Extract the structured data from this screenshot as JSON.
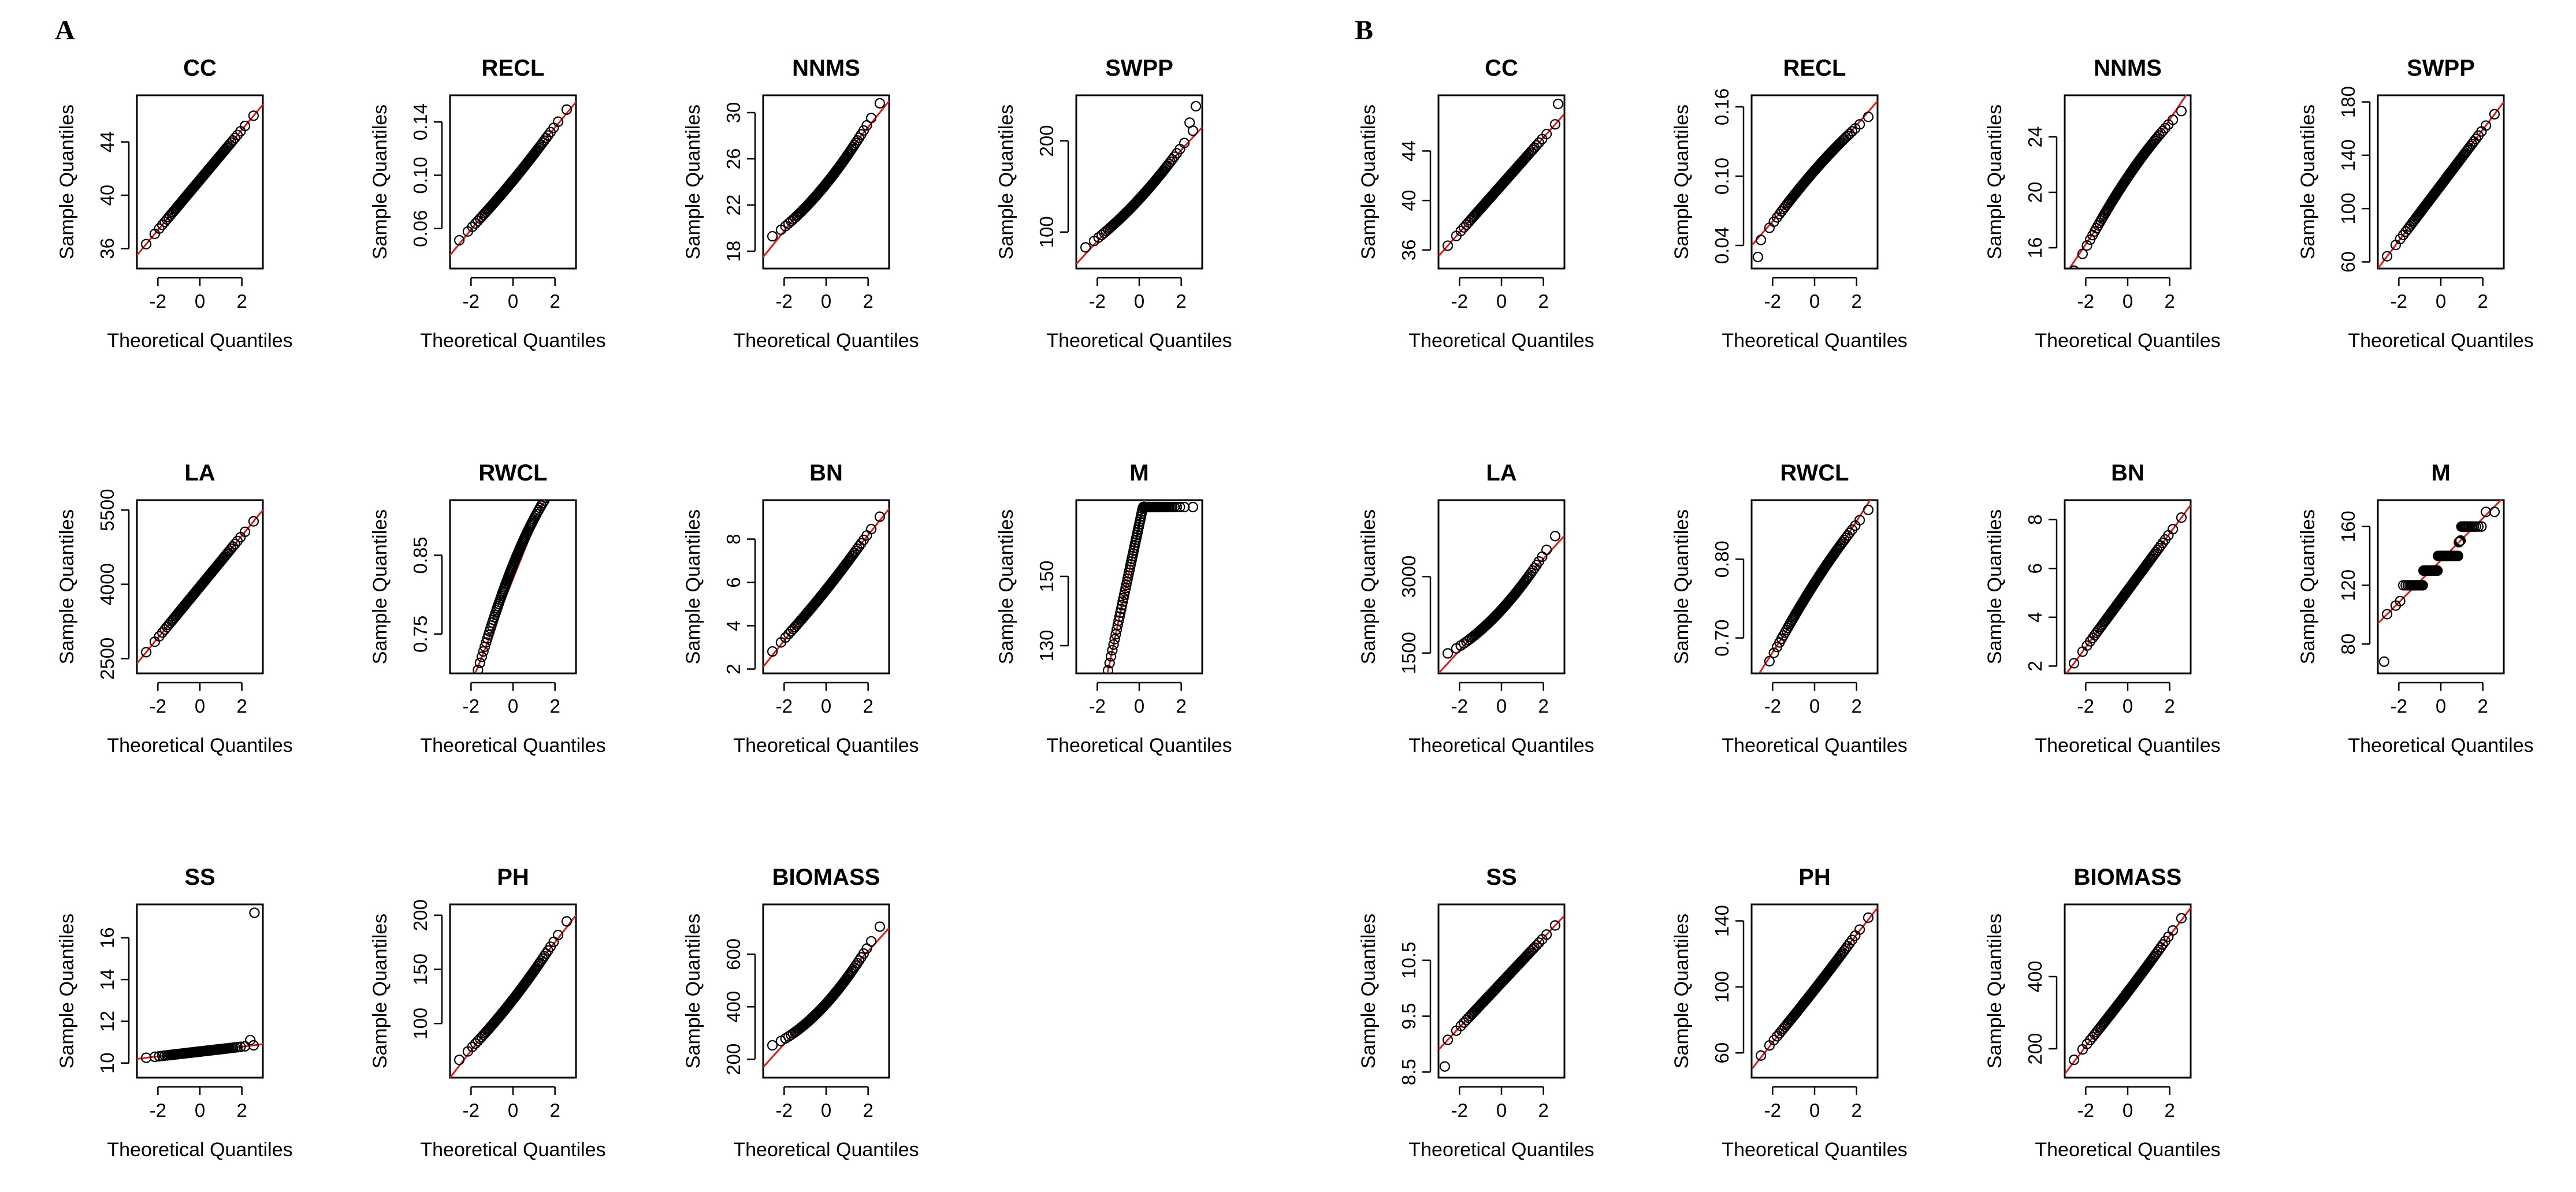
{
  "figure": {
    "panels": [
      {
        "letter": "A"
      },
      {
        "letter": "B"
      }
    ]
  },
  "chart_data": [
    {
      "panel": "A",
      "type": "scatter",
      "title": "CC",
      "xlabel": "Theoretical Quantiles",
      "ylabel": "Sample Quantiles",
      "xlim": [
        -3,
        3
      ],
      "xticks": [
        -2,
        0,
        2
      ],
      "ylim": [
        34.5,
        47.5
      ],
      "yticks": [
        36,
        40,
        44
      ],
      "n": 95,
      "line_range": [
        35.5,
        46.8
      ],
      "curve": 0,
      "extra": []
    },
    {
      "panel": "A",
      "type": "scatter",
      "title": "RECL",
      "xlabel": "Theoretical Quantiles",
      "ylabel": "Sample Quantiles",
      "xlim": [
        -3,
        3
      ],
      "xticks": [
        -2,
        0,
        2
      ],
      "ylim": [
        0.03,
        0.16
      ],
      "yticks": [
        0.06,
        0.1,
        0.14
      ],
      "ytick_labels": [
        "0.06",
        "0.10",
        "0.14"
      ],
      "n": 95,
      "line_range": [
        0.04,
        0.155
      ],
      "curve": 0.1,
      "extra": []
    },
    {
      "panel": "A",
      "type": "scatter",
      "title": "NNMS",
      "xlabel": "Theoretical Quantiles",
      "ylabel": "Sample Quantiles",
      "xlim": [
        -3,
        3
      ],
      "xticks": [
        -2,
        0,
        2
      ],
      "ylim": [
        16.5,
        31.5
      ],
      "yticks": [
        18,
        22,
        26,
        30
      ],
      "n": 95,
      "line_range": [
        17.5,
        31
      ],
      "curve": 0.25,
      "extra": []
    },
    {
      "panel": "A",
      "type": "scatter",
      "title": "SWPP",
      "xlabel": "Theoretical Quantiles",
      "ylabel": "Sample Quantiles",
      "xlim": [
        -3,
        3
      ],
      "xticks": [
        -2,
        0,
        2
      ],
      "ylim": [
        60,
        250
      ],
      "yticks": [
        100,
        200
      ],
      "n": 95,
      "line_range": [
        65,
        215
      ],
      "curve": 0.2,
      "extra": [
        [
          2.4,
          220
        ],
        [
          2.7,
          238
        ]
      ]
    },
    {
      "panel": "A",
      "type": "scatter",
      "title": "LA",
      "xlabel": "Theoretical Quantiles",
      "ylabel": "Sample Quantiles",
      "xlim": [
        -3,
        3
      ],
      "xticks": [
        -2,
        0,
        2
      ],
      "ylim": [
        2200,
        5700
      ],
      "yticks": [
        2500,
        4000,
        5500
      ],
      "n": 95,
      "line_range": [
        2400,
        5500
      ],
      "curve": 0,
      "extra": []
    },
    {
      "panel": "A",
      "type": "scatter",
      "title": "RWCL",
      "xlabel": "Theoretical Quantiles",
      "ylabel": "Sample Quantiles",
      "xlim": [
        -3,
        3
      ],
      "xticks": [
        -2,
        0,
        2
      ],
      "ylim": [
        0.7,
        0.92
      ],
      "yticks": [
        0.75,
        0.85
      ],
      "n": 95,
      "line_range": [
        0.62,
        1.02
      ],
      "curve": -0.35,
      "extra": []
    },
    {
      "panel": "A",
      "type": "scatter",
      "title": "BN",
      "xlabel": "Theoretical Quantiles",
      "ylabel": "Sample Quantiles",
      "xlim": [
        -3,
        3
      ],
      "xticks": [
        -2,
        0,
        2
      ],
      "ylim": [
        1.8,
        9.8
      ],
      "yticks": [
        2,
        4,
        6,
        8
      ],
      "n": 95,
      "line_range": [
        2.1,
        9.4
      ],
      "curve": 0.1,
      "extra": []
    },
    {
      "panel": "A",
      "type": "scatter",
      "title": "M",
      "xlabel": "Theoretical Quantiles",
      "ylabel": "Sample Quantiles",
      "xlim": [
        -3,
        3
      ],
      "xticks": [
        -2,
        0,
        2
      ],
      "ylim": [
        122,
        172
      ],
      "yticks": [
        130,
        150
      ],
      "n": 95,
      "line_range": [
        80,
        250
      ],
      "curve": 0,
      "cap": 170,
      "extra": []
    },
    {
      "panel": "A",
      "type": "scatter",
      "title": "SS",
      "xlabel": "Theoretical Quantiles",
      "ylabel": "Sample Quantiles",
      "xlim": [
        -3,
        3
      ],
      "xticks": [
        -2,
        0,
        2
      ],
      "ylim": [
        9.3,
        17.6
      ],
      "yticks": [
        10,
        12,
        14,
        16
      ],
      "n": 95,
      "line_range": [
        10.2,
        10.9
      ],
      "curve": 0,
      "extra": [
        [
          2.4,
          11.1
        ],
        [
          2.6,
          17.2
        ]
      ]
    },
    {
      "panel": "A",
      "type": "scatter",
      "title": "PH",
      "xlabel": "Theoretical Quantiles",
      "ylabel": "Sample Quantiles",
      "xlim": [
        -3,
        3
      ],
      "xticks": [
        -2,
        0,
        2
      ],
      "ylim": [
        50,
        210
      ],
      "yticks": [
        100,
        150,
        200
      ],
      "n": 95,
      "line_range": [
        50,
        200
      ],
      "curve": 0.15,
      "extra": []
    },
    {
      "panel": "A",
      "type": "scatter",
      "title": "BIOMASS",
      "xlabel": "Theoretical Quantiles",
      "ylabel": "Sample Quantiles",
      "xlim": [
        -3,
        3
      ],
      "xticks": [
        -2,
        0,
        2
      ],
      "ylim": [
        130,
        790
      ],
      "yticks": [
        200,
        400,
        600
      ],
      "n": 95,
      "line_range": [
        170,
        700
      ],
      "curve": 0.35,
      "extra": []
    },
    {
      "panel": "B",
      "type": "scatter",
      "title": "CC",
      "xlabel": "Theoretical Quantiles",
      "ylabel": "Sample Quantiles",
      "xlim": [
        -3,
        3
      ],
      "xticks": [
        -2,
        0,
        2
      ],
      "ylim": [
        34.5,
        48.5
      ],
      "yticks": [
        36,
        40,
        44
      ],
      "n": 95,
      "line_range": [
        35.5,
        47
      ],
      "curve": 0,
      "extra": [
        [
          2.7,
          47.8
        ]
      ]
    },
    {
      "panel": "B",
      "type": "scatter",
      "title": "RECL",
      "xlabel": "Theoretical Quantiles",
      "ylabel": "Sample Quantiles",
      "xlim": [
        -3,
        3
      ],
      "xticks": [
        -2,
        0,
        2
      ],
      "ylim": [
        0.02,
        0.17
      ],
      "yticks": [
        0.04,
        0.1,
        0.16
      ],
      "ytick_labels": [
        "0.04",
        "0.10",
        "0.16"
      ],
      "n": 95,
      "line_range": [
        0.04,
        0.165
      ],
      "curve": -0.15,
      "extra": [
        [
          -2.7,
          0.03
        ]
      ]
    },
    {
      "panel": "B",
      "type": "scatter",
      "title": "NNMS",
      "xlabel": "Theoretical Quantiles",
      "ylabel": "Sample Quantiles",
      "xlim": [
        -3,
        3
      ],
      "xticks": [
        -2,
        0,
        2
      ],
      "ylim": [
        14.5,
        27
      ],
      "yticks": [
        16,
        20,
        24
      ],
      "n": 95,
      "line_range": [
        14,
        27.5
      ],
      "curve": -0.2,
      "extra": []
    },
    {
      "panel": "B",
      "type": "scatter",
      "title": "SWPP",
      "xlabel": "Theoretical Quantiles",
      "ylabel": "Sample Quantiles",
      "xlim": [
        -3,
        3
      ],
      "xticks": [
        -2,
        0,
        2
      ],
      "ylim": [
        55,
        185
      ],
      "yticks": [
        60,
        100,
        140,
        180
      ],
      "n": 95,
      "line_range": [
        55,
        180
      ],
      "curve": 0,
      "extra": []
    },
    {
      "panel": "B",
      "type": "scatter",
      "title": "LA",
      "xlabel": "Theoretical Quantiles",
      "ylabel": "Sample Quantiles",
      "xlim": [
        -3,
        3
      ],
      "xticks": [
        -2,
        0,
        2
      ],
      "ylim": [
        1100,
        4500
      ],
      "yticks": [
        1500,
        3000
      ],
      "n": 95,
      "line_range": [
        1100,
        3800
      ],
      "curve": 0.3,
      "extra": []
    },
    {
      "panel": "B",
      "type": "scatter",
      "title": "RWCL",
      "xlabel": "Theoretical Quantiles",
      "ylabel": "Sample Quantiles",
      "xlim": [
        -3,
        3
      ],
      "xticks": [
        -2,
        0,
        2
      ],
      "ylim": [
        0.655,
        0.875
      ],
      "yticks": [
        0.7,
        0.8
      ],
      "ytick_labels": [
        "0.70",
        "0.80"
      ],
      "n": 95,
      "line_range": [
        0.64,
        0.89
      ],
      "curve": -0.15,
      "extra": []
    },
    {
      "panel": "B",
      "type": "scatter",
      "title": "BN",
      "xlabel": "Theoretical Quantiles",
      "ylabel": "Sample Quantiles",
      "xlim": [
        -3,
        3
      ],
      "xticks": [
        -2,
        0,
        2
      ],
      "ylim": [
        1.7,
        8.8
      ],
      "yticks": [
        2,
        4,
        6,
        8
      ],
      "n": 95,
      "line_range": [
        1.6,
        8.6
      ],
      "curve": 0,
      "extra": []
    },
    {
      "panel": "B",
      "type": "scatter",
      "title": "M",
      "xlabel": "Theoretical Quantiles",
      "ylabel": "Sample Quantiles",
      "xlim": [
        -3,
        3
      ],
      "xticks": [
        -2,
        0,
        2
      ],
      "ylim": [
        60,
        178
      ],
      "yticks": [
        80,
        120,
        160
      ],
      "n": 95,
      "line_range": [
        94,
        180
      ],
      "curve": 0,
      "steps": [
        120,
        130,
        140,
        160,
        170
      ],
      "extra": [
        [
          -2.7,
          68
        ]
      ]
    },
    {
      "panel": "B",
      "type": "scatter",
      "title": "SS",
      "xlabel": "Theoretical Quantiles",
      "ylabel": "Sample Quantiles",
      "xlim": [
        -3,
        3
      ],
      "xticks": [
        -2,
        0,
        2
      ],
      "ylim": [
        8.4,
        11.5
      ],
      "yticks": [
        8.5,
        9.5,
        10.5
      ],
      "n": 95,
      "line_range": [
        8.9,
        11.3
      ],
      "curve": 0,
      "extra": [
        [
          -2.7,
          8.6
        ]
      ]
    },
    {
      "panel": "B",
      "type": "scatter",
      "title": "PH",
      "xlabel": "Theoretical Quantiles",
      "ylabel": "Sample Quantiles",
      "xlim": [
        -3,
        3
      ],
      "xticks": [
        -2,
        0,
        2
      ],
      "ylim": [
        45,
        150
      ],
      "yticks": [
        60,
        100,
        140
      ],
      "n": 95,
      "line_range": [
        50,
        148
      ],
      "curve": 0.05,
      "extra": []
    },
    {
      "panel": "B",
      "type": "scatter",
      "title": "BIOMASS",
      "xlabel": "Theoretical Quantiles",
      "ylabel": "Sample Quantiles",
      "xlim": [
        -3,
        3
      ],
      "xticks": [
        -2,
        0,
        2
      ],
      "ylim": [
        120,
        600
      ],
      "yticks": [
        200,
        400
      ],
      "n": 95,
      "line_range": [
        130,
        590
      ],
      "curve": 0.05,
      "extra": []
    }
  ]
}
